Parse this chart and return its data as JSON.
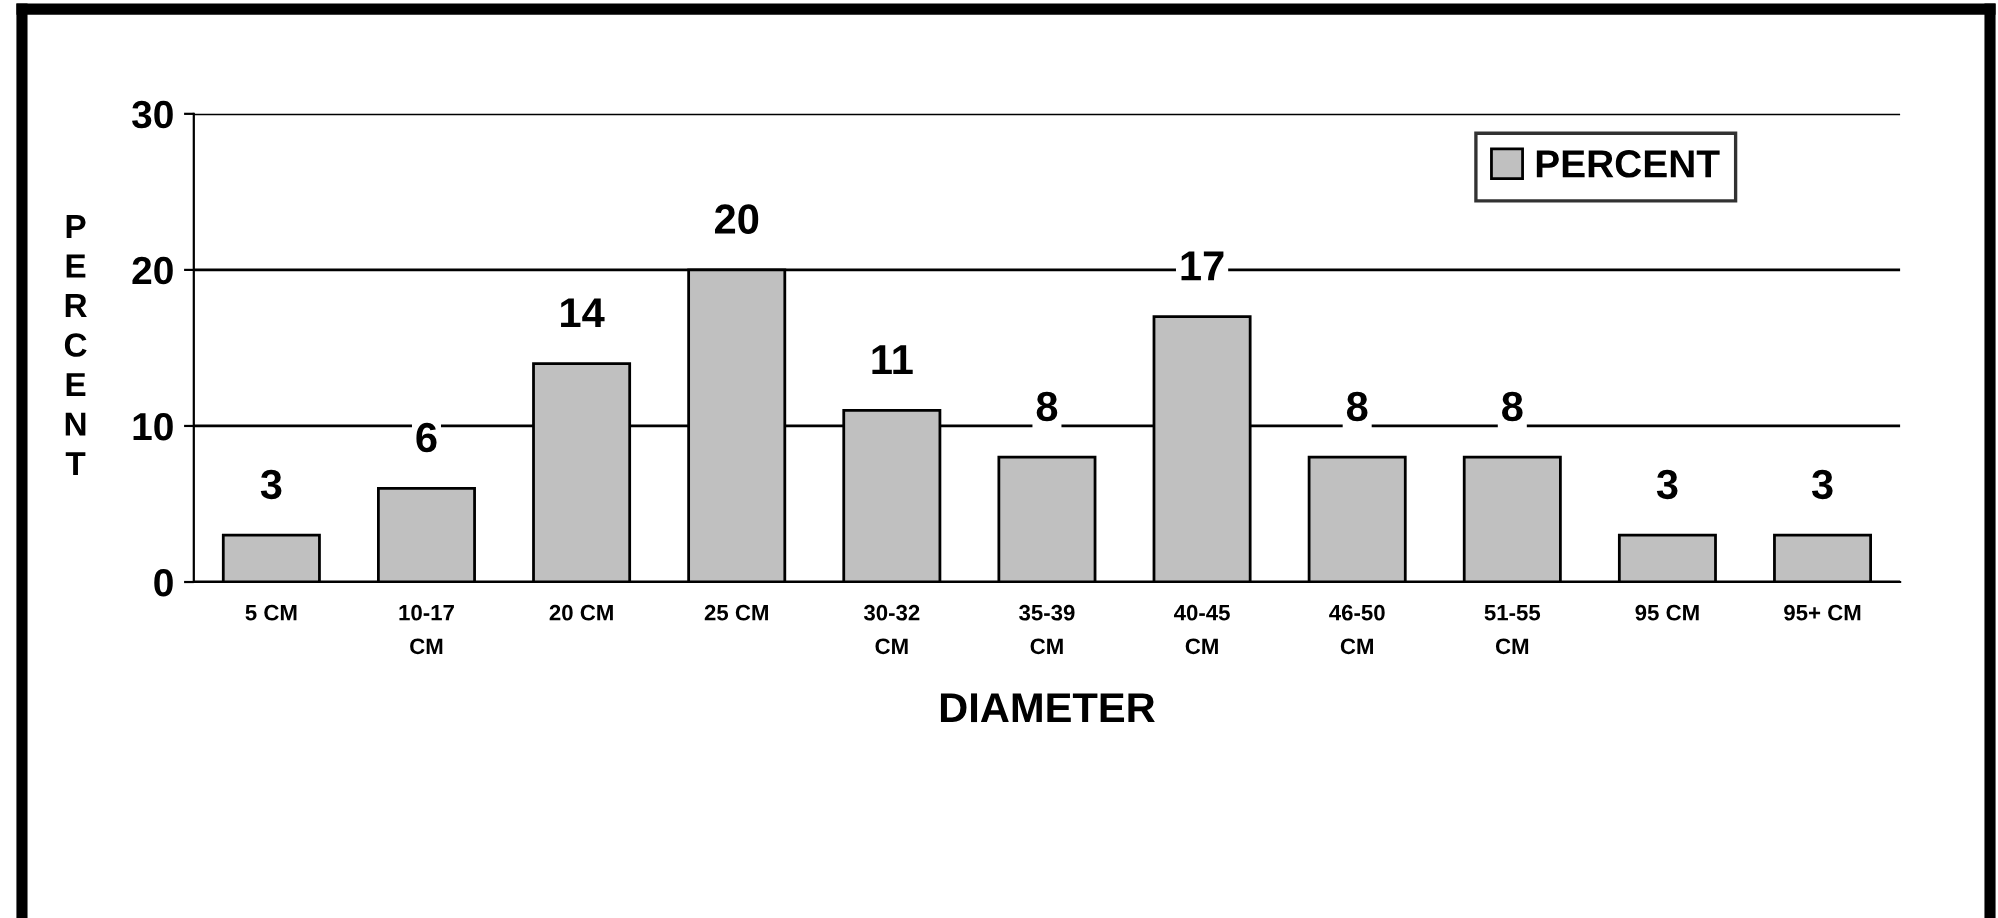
{
  "chart_data": {
    "type": "bar",
    "xlabel": "DIAMETER",
    "ylabel": "PERCENT",
    "categories": [
      "5 CM",
      "10-17\nCM",
      "20 CM",
      "25 CM",
      "30-32\nCM",
      "35-39\nCM",
      "40-45\nCM",
      "46-50\nCM",
      "51-55\nCM",
      "95 CM",
      "95+ CM"
    ],
    "series": [
      {
        "name": "PERCENT",
        "color": "#c0c0c0",
        "values": [
          3,
          6,
          14,
          20,
          11,
          8,
          17,
          8,
          8,
          3,
          3
        ]
      }
    ],
    "ylim": [
      0,
      30
    ],
    "yticks": [
      0,
      10,
      20,
      30
    ],
    "grid": "y",
    "legend": "top right",
    "data_labels": true
  }
}
